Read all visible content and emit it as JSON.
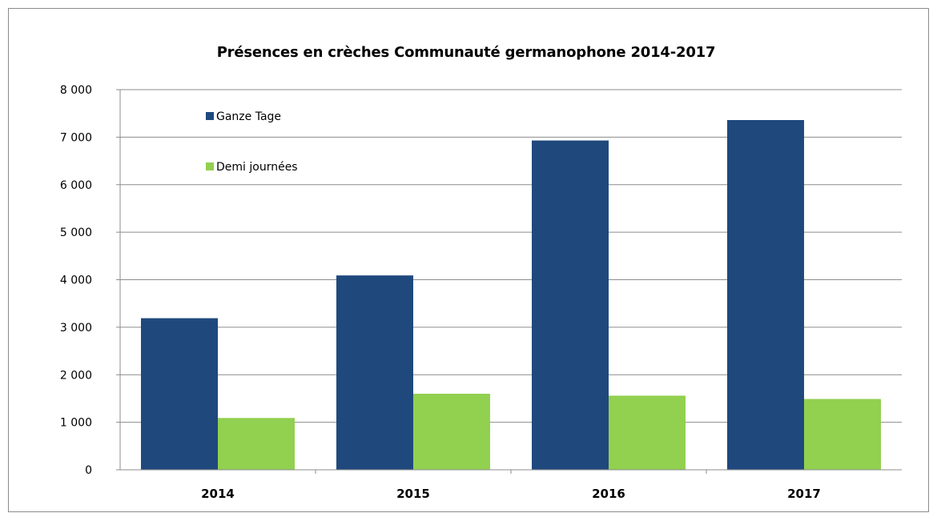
{
  "chart_data": {
    "type": "bar",
    "title": "Présences en crèches Communauté germanophone 2014-2017",
    "categories": [
      "2014",
      "2015",
      "2016",
      "2017"
    ],
    "series": [
      {
        "name": "Ganze Tage",
        "color": "#1f497d",
        "values": [
          3190,
          4090,
          6930,
          7360
        ]
      },
      {
        "name": "Demi journées",
        "color": "#92d050",
        "values": [
          1090,
          1600,
          1560,
          1490
        ]
      }
    ],
    "yticks": [
      "0",
      "1 000",
      "2 000",
      "3 000",
      "4 000",
      "5 000",
      "6 000",
      "7 000",
      "8 000"
    ],
    "ylim": [
      0,
      8000
    ],
    "grid": true,
    "legend_position": "top-left"
  }
}
